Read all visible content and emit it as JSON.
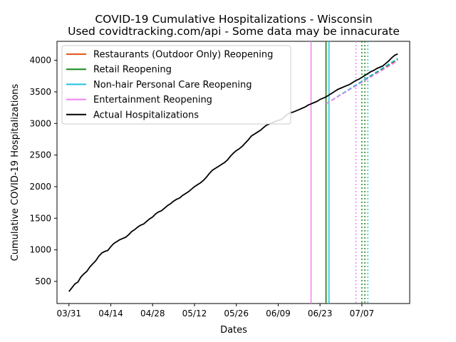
{
  "chart_data": {
    "type": "line",
    "title": "COVID-19 Cumulative Hospitalizations - Wisconsin",
    "subtitle": "Used covidtracking.com/api - Some data may be innacurate",
    "xlabel": "Dates",
    "ylabel": "Cumulative COVID-19 Hospitalizations",
    "x_ticks": [
      "03/31",
      "04/14",
      "04/28",
      "05/12",
      "05/26",
      "06/09",
      "06/23",
      "07/07"
    ],
    "xlim": [
      "2020-03-27",
      "2020-07-23"
    ],
    "y_ticks": [
      500,
      1000,
      1500,
      2000,
      2500,
      3000,
      3500,
      4000
    ],
    "ylim": [
      150,
      4300
    ],
    "legend_position": "upper-left",
    "series": [
      {
        "name": "Actual Hospitalizations",
        "color": "#000000",
        "x": [
          "2020-03-31",
          "2020-04-01",
          "2020-04-02",
          "2020-04-03",
          "2020-04-04",
          "2020-04-05",
          "2020-04-06",
          "2020-04-07",
          "2020-04-08",
          "2020-04-09",
          "2020-04-10",
          "2020-04-11",
          "2020-04-12",
          "2020-04-13",
          "2020-04-14",
          "2020-04-15",
          "2020-04-16",
          "2020-04-17",
          "2020-04-18",
          "2020-04-19",
          "2020-04-20",
          "2020-04-21",
          "2020-04-22",
          "2020-04-23",
          "2020-04-24",
          "2020-04-25",
          "2020-04-26",
          "2020-04-27",
          "2020-04-28",
          "2020-04-29",
          "2020-04-30",
          "2020-05-01",
          "2020-05-02",
          "2020-05-03",
          "2020-05-04",
          "2020-05-05",
          "2020-05-06",
          "2020-05-07",
          "2020-05-08",
          "2020-05-09",
          "2020-05-10",
          "2020-05-11",
          "2020-05-12",
          "2020-05-13",
          "2020-05-14",
          "2020-05-15",
          "2020-05-16",
          "2020-05-17",
          "2020-05-18",
          "2020-05-19",
          "2020-05-20",
          "2020-05-21",
          "2020-05-22",
          "2020-05-23",
          "2020-05-24",
          "2020-05-25",
          "2020-05-26",
          "2020-05-27",
          "2020-05-28",
          "2020-05-29",
          "2020-05-30",
          "2020-05-31",
          "2020-06-01",
          "2020-06-02",
          "2020-06-03",
          "2020-06-04",
          "2020-06-05",
          "2020-06-06",
          "2020-06-07",
          "2020-06-08",
          "2020-06-09",
          "2020-06-10",
          "2020-06-11",
          "2020-06-12",
          "2020-06-13",
          "2020-06-14",
          "2020-06-15",
          "2020-06-16",
          "2020-06-17",
          "2020-06-18",
          "2020-06-19",
          "2020-06-20",
          "2020-06-21",
          "2020-06-22",
          "2020-06-23",
          "2020-06-24",
          "2020-06-25",
          "2020-06-26",
          "2020-06-27",
          "2020-06-28",
          "2020-06-29",
          "2020-06-30",
          "2020-07-01",
          "2020-07-02",
          "2020-07-03",
          "2020-07-04",
          "2020-07-05",
          "2020-07-06",
          "2020-07-07",
          "2020-07-08",
          "2020-07-09",
          "2020-07-10",
          "2020-07-11",
          "2020-07-12",
          "2020-07-13",
          "2020-07-14",
          "2020-07-15",
          "2020-07-16",
          "2020-07-17",
          "2020-07-18",
          "2020-07-19"
        ],
        "values": [
          340,
          400,
          460,
          490,
          570,
          620,
          660,
          730,
          780,
          830,
          900,
          950,
          975,
          990,
          1050,
          1100,
          1130,
          1160,
          1180,
          1200,
          1240,
          1290,
          1320,
          1360,
          1390,
          1410,
          1450,
          1490,
          1520,
          1570,
          1600,
          1620,
          1660,
          1700,
          1730,
          1770,
          1800,
          1820,
          1860,
          1890,
          1920,
          1960,
          2000,
          2030,
          2060,
          2100,
          2150,
          2210,
          2260,
          2290,
          2320,
          2350,
          2380,
          2420,
          2480,
          2530,
          2570,
          2600,
          2640,
          2690,
          2740,
          2800,
          2830,
          2860,
          2890,
          2930,
          2970,
          2990,
          3010,
          3030,
          3050,
          3060,
          3100,
          3140,
          3170,
          3180,
          3200,
          3220,
          3240,
          3260,
          3290,
          3310,
          3330,
          3350,
          3380,
          3400,
          3420,
          3450,
          3480,
          3510,
          3540,
          3560,
          3580,
          3600,
          3620,
          3650,
          3680,
          3700,
          3730,
          3760,
          3790,
          3820,
          3840,
          3870,
          3890,
          3910,
          3950,
          3990,
          4040,
          4080,
          4100
        ]
      },
      {
        "name": "Restaurants (Outdoor Only) Reopening",
        "color": "#e8571c",
        "line_date": "2020-06-25",
        "projection_x": [
          "2020-06-25",
          "2020-07-19"
        ],
        "projection_y": [
          3310,
          4010
        ]
      },
      {
        "name": "Retail Reopening",
        "color": "#15891a",
        "line_date": "2020-06-25",
        "projection_x": [
          "2020-06-25",
          "2020-07-19"
        ],
        "projection_y": [
          3310,
          4020
        ]
      },
      {
        "name": "Non-hair Personal Care Reopening",
        "color": "#1ec1e6",
        "line_date": "2020-06-26",
        "projection_x": [
          "2020-06-25",
          "2020-07-19"
        ],
        "projection_y": [
          3310,
          4030
        ]
      },
      {
        "name": "Entertainment Reopening",
        "color": "#ee82ee",
        "line_date": "2020-06-20",
        "projection_x": [
          "2020-06-25",
          "2020-07-19"
        ],
        "projection_y": [
          3310,
          3990
        ]
      }
    ],
    "dotted_lines": [
      {
        "date": "2020-07-05",
        "color": "#ee82ee"
      },
      {
        "date": "2020-07-07",
        "color": "#15891a"
      },
      {
        "date": "2020-07-08",
        "color": "#15891a"
      },
      {
        "date": "2020-07-09",
        "color": "#1ec1e6"
      }
    ]
  }
}
